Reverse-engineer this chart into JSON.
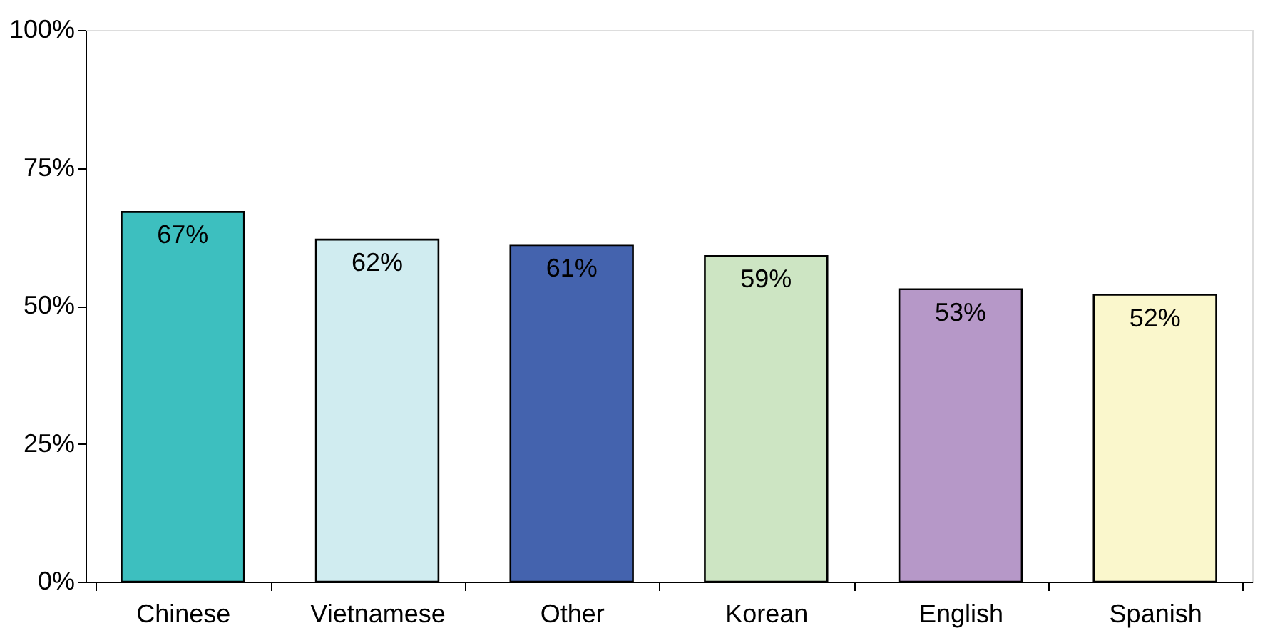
{
  "chart_data": {
    "type": "bar",
    "categories": [
      "Chinese",
      "Vietnamese",
      "Other",
      "Korean",
      "English",
      "Spanish"
    ],
    "values": [
      67,
      62,
      61,
      59,
      53,
      52
    ],
    "colors": [
      "#3dbfbf",
      "#d0ecf0",
      "#4463ae",
      "#cde5c3",
      "#b698c8",
      "#faf7cc"
    ],
    "ylim": [
      0,
      100
    ],
    "yticks": [
      {
        "value": 0,
        "label": "0%"
      },
      {
        "value": 25,
        "label": "25%"
      },
      {
        "value": 50,
        "label": "50%"
      },
      {
        "value": 75,
        "label": "75%"
      },
      {
        "value": 100,
        "label": "100%"
      }
    ],
    "value_labels": [
      "67%",
      "62%",
      "61%",
      "59%",
      "53%",
      "52%"
    ],
    "grid": false,
    "legend": false
  }
}
